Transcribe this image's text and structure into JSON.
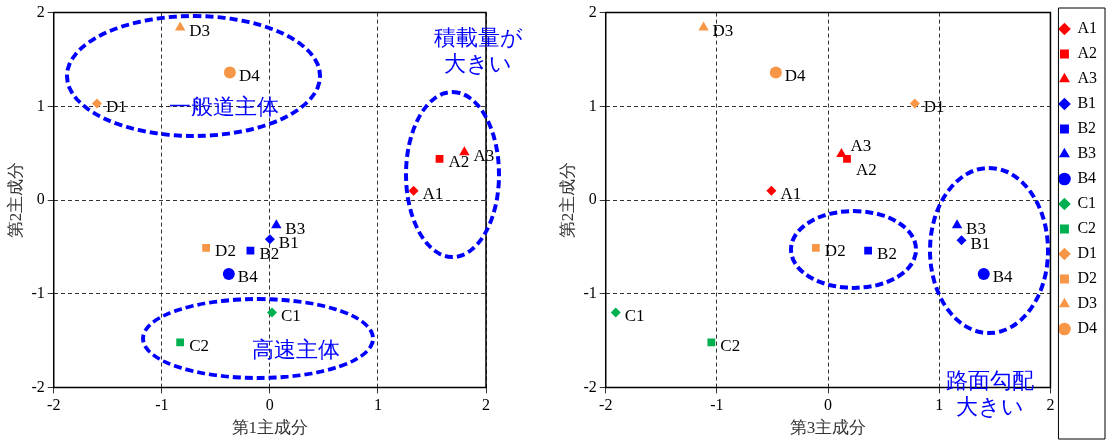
{
  "chart_data": [
    {
      "type": "scatter",
      "xlabel": "第1主成分",
      "ylabel": "第2主成分",
      "xlim": [
        -2,
        2
      ],
      "ylim": [
        -2,
        2
      ],
      "xticks": [
        -2,
        -1,
        0,
        1,
        2
      ],
      "yticks": [
        -2,
        -1,
        0,
        1,
        2
      ],
      "grid": true,
      "legend": false,
      "annotations": [
        "一般道主体",
        "積載量が大きい",
        "高速主体"
      ],
      "series": [
        {
          "name": "A1",
          "color": "#ff0000",
          "marker": "diamond",
          "x": [
            1.33
          ],
          "values": [
            0.1
          ]
        },
        {
          "name": "A2",
          "color": "#ff0000",
          "marker": "square",
          "x": [
            1.57
          ],
          "values": [
            0.44
          ]
        },
        {
          "name": "A3",
          "color": "#ff0000",
          "marker": "triangle",
          "x": [
            1.8
          ],
          "values": [
            0.51
          ]
        },
        {
          "name": "B1",
          "color": "#0000ff",
          "marker": "diamond",
          "x": [
            0.0
          ],
          "values": [
            -0.42
          ]
        },
        {
          "name": "B2",
          "color": "#0000ff",
          "marker": "square",
          "x": [
            -0.18
          ],
          "values": [
            -0.54
          ]
        },
        {
          "name": "B3",
          "color": "#0000ff",
          "marker": "triangle",
          "x": [
            0.06
          ],
          "values": [
            -0.27
          ]
        },
        {
          "name": "B4",
          "color": "#0000ff",
          "marker": "circle",
          "x": [
            -0.38
          ],
          "values": [
            -0.79
          ]
        },
        {
          "name": "C1",
          "color": "#00b050",
          "marker": "diamond",
          "x": [
            0.02
          ],
          "values": [
            -1.2
          ]
        },
        {
          "name": "C2",
          "color": "#00b050",
          "marker": "square",
          "x": [
            -0.83
          ],
          "values": [
            -1.52
          ]
        },
        {
          "name": "D1",
          "color": "#f79646",
          "marker": "diamond",
          "x": [
            -1.6
          ],
          "values": [
            1.03
          ]
        },
        {
          "name": "D2",
          "color": "#f79646",
          "marker": "square",
          "x": [
            -0.59
          ],
          "values": [
            -0.51
          ]
        },
        {
          "name": "D3",
          "color": "#f79646",
          "marker": "triangle",
          "x": [
            -0.83
          ],
          "values": [
            1.84
          ]
        },
        {
          "name": "D4",
          "color": "#f79646",
          "marker": "circle",
          "x": [
            -0.37
          ],
          "values": [
            1.36
          ]
        }
      ]
    },
    {
      "type": "scatter",
      "xlabel": "第3主成分",
      "ylabel": "第2主成分",
      "xlim": [
        -2,
        2
      ],
      "ylim": [
        -2,
        2
      ],
      "xticks": [
        -2,
        -1,
        0,
        1,
        2
      ],
      "yticks": [
        -2,
        -1,
        0,
        1,
        2
      ],
      "grid": true,
      "legend": "right",
      "annotations": [
        "路面勾配大きい"
      ],
      "series": [
        {
          "name": "A1",
          "color": "#ff0000",
          "marker": "diamond",
          "x": [
            -0.51
          ],
          "values": [
            0.1
          ]
        },
        {
          "name": "A2",
          "color": "#ff0000",
          "marker": "square",
          "x": [
            0.17
          ],
          "values": [
            0.44
          ]
        },
        {
          "name": "A3",
          "color": "#ff0000",
          "marker": "triangle",
          "x": [
            0.12
          ],
          "values": [
            0.49
          ]
        },
        {
          "name": "B1",
          "color": "#0000ff",
          "marker": "diamond",
          "x": [
            1.2
          ],
          "values": [
            -0.43
          ]
        },
        {
          "name": "B2",
          "color": "#0000ff",
          "marker": "square",
          "x": [
            0.36
          ],
          "values": [
            -0.54
          ]
        },
        {
          "name": "B3",
          "color": "#0000ff",
          "marker": "triangle",
          "x": [
            1.16
          ],
          "values": [
            -0.27
          ]
        },
        {
          "name": "B4",
          "color": "#0000ff",
          "marker": "circle",
          "x": [
            1.4
          ],
          "values": [
            -0.79
          ]
        },
        {
          "name": "C1",
          "color": "#00b050",
          "marker": "diamond",
          "x": [
            -1.91
          ],
          "values": [
            -1.2
          ]
        },
        {
          "name": "C2",
          "color": "#00b050",
          "marker": "square",
          "x": [
            -1.05
          ],
          "values": [
            -1.52
          ]
        },
        {
          "name": "D1",
          "color": "#f79646",
          "marker": "diamond",
          "x": [
            0.78
          ],
          "values": [
            1.03
          ]
        },
        {
          "name": "D2",
          "color": "#f79646",
          "marker": "square",
          "x": [
            -0.11
          ],
          "values": [
            -0.51
          ]
        },
        {
          "name": "D3",
          "color": "#f79646",
          "marker": "triangle",
          "x": [
            -1.12
          ],
          "values": [
            1.84
          ]
        },
        {
          "name": "D4",
          "color": "#f79646",
          "marker": "circle",
          "x": [
            -0.47
          ],
          "values": [
            1.36
          ]
        }
      ]
    }
  ]
}
